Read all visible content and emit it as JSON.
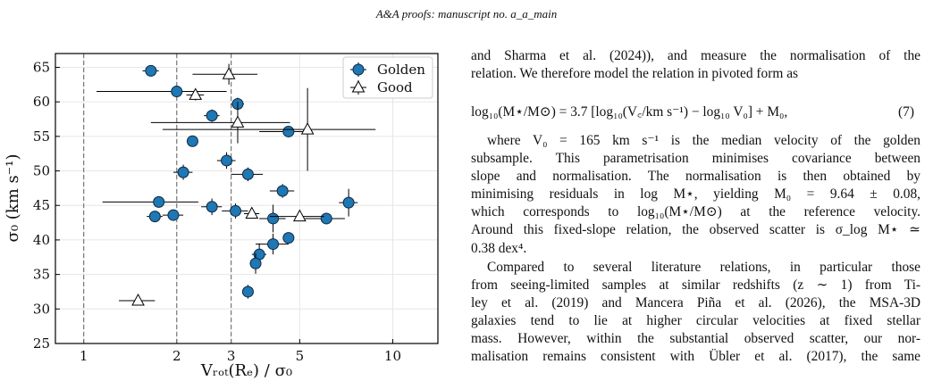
{
  "header": "A&A proofs: manuscript no. a_a_main",
  "chart_data": {
    "type": "scatter",
    "xlabel": "Vᵣₒₜ(Rₑ) / σ₀",
    "ylabel": "σ₀ (km s⁻¹)",
    "xlim": [
      0.81,
      14
    ],
    "ylim": [
      25,
      67
    ],
    "xscale": "log",
    "grid": true,
    "legend": "upper right",
    "xticks": [
      1,
      2,
      3,
      5,
      10
    ],
    "yticks": [
      25,
      30,
      35,
      40,
      45,
      50,
      55,
      60,
      65
    ],
    "vlines": [
      1,
      2,
      3
    ],
    "series": [
      {
        "name": "Golden",
        "color": "#1f77b4",
        "marker": "circle",
        "x": [
          1.65,
          2.0,
          3.15,
          2.6,
          2.25,
          4.6,
          2.9,
          2.1,
          3.4,
          4.4,
          1.75,
          1.7,
          1.95,
          2.6,
          3.1,
          4.1,
          6.1,
          7.2,
          4.6,
          4.1,
          3.7,
          3.6,
          3.4
        ],
        "values": [
          64.5,
          61.5,
          59.7,
          58,
          54.3,
          55.7,
          51.5,
          49.8,
          49.5,
          47.1,
          45.5,
          43.4,
          43.6,
          44.8,
          44.2,
          43.1,
          43.1,
          45.4,
          40.3,
          39.4,
          37.9,
          36.6,
          32.5
        ],
        "xerr": [
          0.1,
          0.9,
          0.15,
          0.15,
          0.05,
          0.9,
          0.2,
          0.15,
          0.4,
          0.4,
          0.6,
          0.1,
          0.15,
          0.2,
          0.3,
          0.4,
          0.9,
          0.5,
          0.15,
          0.5,
          0.2,
          0.15,
          0.1
        ],
        "yerr": [
          0.6,
          0.5,
          0.9,
          0.9,
          0.3,
          0.6,
          1.2,
          1.1,
          1.0,
          1.0,
          0.5,
          0.6,
          0.8,
          1.2,
          1.1,
          2.0,
          0.6,
          2.0,
          0.7,
          1.5,
          1.6,
          1.5,
          1.0
        ]
      },
      {
        "name": "Good",
        "color": "#ffffff",
        "marker": "triangle",
        "x": [
          2.95,
          2.3,
          3.15,
          5.3,
          3.5,
          5.0,
          1.5
        ],
        "values": [
          64,
          61,
          57,
          56,
          43.8,
          43.4,
          31.2
        ],
        "xerr": [
          0.7,
          0.15,
          1.5,
          3.5,
          0.2,
          1.0,
          0.2
        ],
        "yerr": [
          1.5,
          0.8,
          3,
          6,
          0.5,
          0.5,
          0.3
        ]
      }
    ]
  },
  "text": {
    "lines_top": [
      "and Sharma et al. (2024)), and measure the normalisation of the",
      "relation. We therefore model the relation in pivoted form as"
    ],
    "equation": "log₁₀(M⋆/M⊙) = 3.7 [log₁₀(V꜀/km s⁻¹) − log₁₀ V₀] + M₀,",
    "equation_number": "(7)",
    "lines": [
      "where V₀ = 165 km s⁻¹ is the median velocity of the golden",
      "subsample. This parametrisation minimises covariance between",
      "slope and normalisation. The normalisation is then obtained by",
      "minimising residuals in log M⋆, yielding M₀ = 9.64 ± 0.08,",
      "which corresponds to log₁₀(M⋆/M⊙) at the reference velocity.",
      "Around this fixed-slope relation, the observed scatter is σ_log M⋆ ≃",
      "0.38 dex⁴.",
      "Compared to several literature relations, in particular those",
      "from seeing-limited samples at similar redshifts (z ∼ 1) from Ti-",
      "ley et al. (2019) and Mancera Piña et al. (2026), the MSA-3D",
      "galaxies tend to lie at higher circular velocities at fixed stellar",
      "mass. However, within the substantial observed scatter, our nor-",
      "malisation remains consistent with Übler et al. (2017), the same"
    ]
  }
}
